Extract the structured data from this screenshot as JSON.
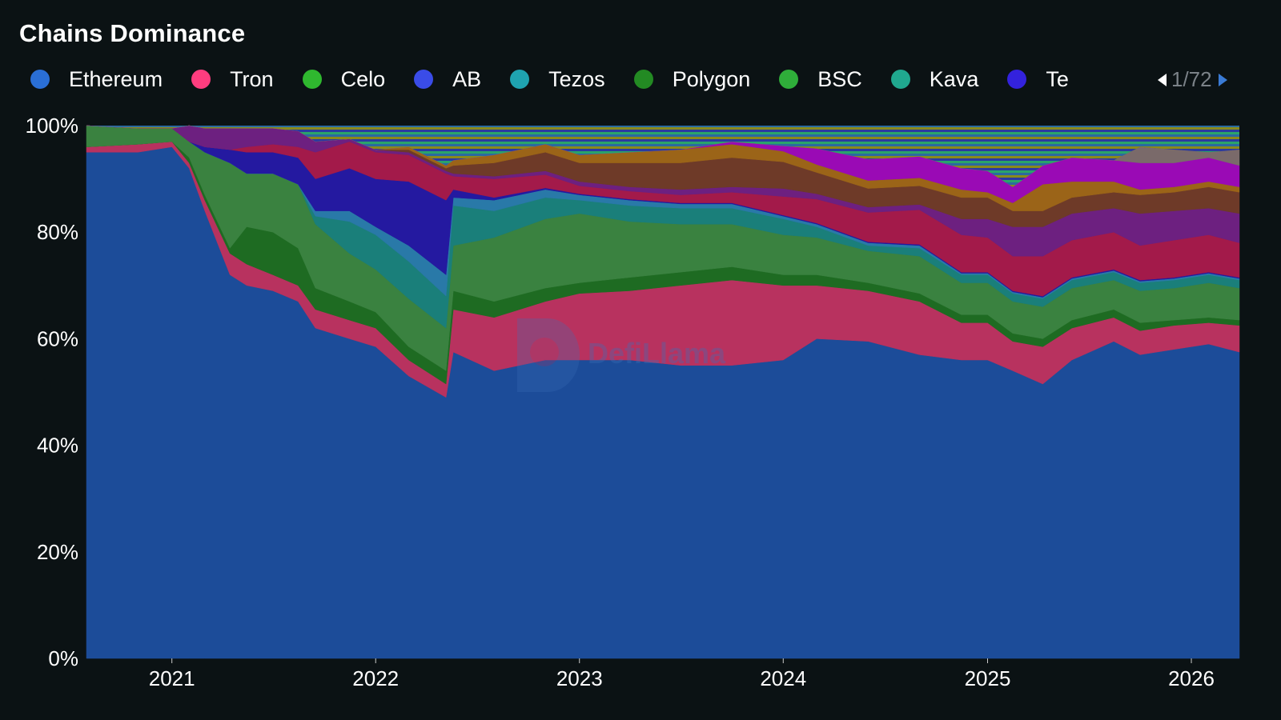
{
  "title": "Chains Dominance",
  "legend": {
    "items": [
      {
        "label": "Ethereum",
        "color": "#2a6fd6"
      },
      {
        "label": "Tron",
        "color": "#ff3d7f"
      },
      {
        "label": "Celo",
        "color": "#2fb82f"
      },
      {
        "label": "AB",
        "color": "#3a4ce8"
      },
      {
        "label": "Tezos",
        "color": "#1fa3b0"
      },
      {
        "label": "Polygon",
        "color": "#238a23"
      },
      {
        "label": "BSC",
        "color": "#2fae3a"
      },
      {
        "label": "Kava",
        "color": "#20a88f"
      },
      {
        "label": "Te",
        "color": "#3322dd"
      }
    ],
    "page": "1/72",
    "prev_icon": "triangle-left",
    "next_icon": "triangle-right"
  },
  "watermark": "DefiLlama",
  "chart_data": {
    "type": "area",
    "stacked": true,
    "normalized": true,
    "title": "Chains Dominance",
    "xlabel": "",
    "ylabel": "",
    "xlim": [
      "2020-08-01",
      "2026-03-28"
    ],
    "ylim": [
      0,
      100
    ],
    "y_ticks": [
      "0%",
      "20%",
      "40%",
      "60%",
      "80%",
      "100%"
    ],
    "x_ticks": [
      "2021",
      "2022",
      "2023",
      "2024",
      "2025",
      "2026"
    ],
    "grid": false,
    "legend_position": "top",
    "x": [
      "2020-08-01",
      "2020-11-01",
      "2021-01-01",
      "2021-02-01",
      "2021-03-01",
      "2021-04-15",
      "2021-05-15",
      "2021-07-01",
      "2021-08-15",
      "2021-09-15",
      "2021-11-15",
      "2022-01-01",
      "2022-03-01",
      "2022-05-07",
      "2022-05-20",
      "2022-08-01",
      "2022-11-01",
      "2023-01-01",
      "2023-04-01",
      "2023-07-01",
      "2023-10-01",
      "2024-01-01",
      "2024-03-01",
      "2024-06-01",
      "2024-09-01",
      "2024-11-15",
      "2025-01-01",
      "2025-02-15",
      "2025-04-10",
      "2025-06-01",
      "2025-08-15",
      "2025-10-01",
      "2025-12-01",
      "2026-02-01",
      "2026-03-28"
    ],
    "series": [
      {
        "name": "Ethereum",
        "color": "#1c4c99",
        "values": [
          95,
          95,
          96,
          92,
          84,
          72,
          70,
          69,
          67,
          62,
          60,
          58.5,
          53,
          49,
          57.5,
          54,
          56,
          56,
          56,
          55,
          55,
          56,
          60,
          59.5,
          57,
          56,
          56,
          54,
          51.5,
          56,
          59.5,
          57,
          58,
          59,
          57.5
        ]
      },
      {
        "name": "Tron",
        "color": "#b8325f",
        "values": [
          1,
          1.5,
          1,
          1,
          2,
          4,
          4,
          3,
          3,
          3.5,
          3.5,
          3.5,
          3,
          2.5,
          8,
          10,
          11,
          12.5,
          13,
          15,
          16,
          14,
          10,
          9.5,
          10,
          7,
          7,
          5.5,
          7,
          6,
          4.5,
          4.5,
          4.5,
          4,
          5
        ]
      },
      {
        "name": "Polygon",
        "color": "#1e6b22",
        "values": [
          0,
          0,
          0,
          1,
          1,
          1,
          7,
          8,
          7,
          4,
          3.5,
          3,
          2.5,
          2.5,
          3.5,
          3,
          2.5,
          2,
          2.5,
          2.5,
          2.5,
          2,
          2,
          1.5,
          1.5,
          1.5,
          1.5,
          1.5,
          1.5,
          1.5,
          1.5,
          1.5,
          1,
          1,
          1
        ]
      },
      {
        "name": "BSC",
        "color": "#3a8240",
        "values": [
          4,
          3,
          2.5,
          3,
          8,
          16,
          10,
          11,
          12,
          12,
          9,
          8,
          9,
          8,
          8.5,
          12,
          13,
          13,
          10.5,
          9,
          8,
          7.5,
          7,
          6,
          7,
          6,
          6,
          6,
          6,
          6,
          5.5,
          6,
          6,
          6.5,
          6
        ]
      },
      {
        "color": "#1a7f7a",
        "values": [
          0,
          0,
          0,
          0,
          0,
          0,
          0,
          0,
          0,
          1.5,
          6,
          6.5,
          7,
          6,
          7.5,
          5,
          4,
          2.5,
          3,
          3,
          3,
          3,
          2,
          1,
          1.5,
          1.5,
          1.5,
          1.5,
          1.5,
          1.5,
          1.5,
          1.5,
          1.5,
          1.5,
          1.5
        ]
      },
      {
        "color": "#2979a8",
        "values": [
          0,
          0,
          0,
          0,
          0,
          0,
          0,
          0,
          0,
          1,
          2,
          1.5,
          3,
          4,
          1.5,
          2,
          1.5,
          1,
          1,
          0.8,
          0.8,
          0.5,
          0.5,
          0.5,
          0.5,
          0.3,
          0.3,
          0.3,
          0.3,
          0.3,
          0.3,
          0.3,
          0.3,
          0.3,
          0.3
        ]
      },
      {
        "color": "#2419a0",
        "values": [
          0,
          0,
          0,
          0,
          1,
          2.5,
          4,
          4,
          5,
          6,
          8,
          9,
          12,
          14,
          1.5,
          0.5,
          0.3,
          0.2,
          0.2,
          0.2,
          0.2,
          0.2,
          0.2,
          0.2,
          0.2,
          0.2,
          0.2,
          0.2,
          0.2,
          0.2,
          0.2,
          0.2,
          0.2,
          0.2,
          0.2
        ]
      },
      {
        "color": "#a31a4a",
        "values": [
          0,
          0,
          0,
          0,
          0,
          0,
          1,
          1.5,
          2,
          5,
          5,
          5,
          5,
          5,
          2.5,
          3.5,
          2.5,
          1.5,
          1.5,
          1.5,
          2,
          3.5,
          4.5,
          5.5,
          6.5,
          7,
          6.5,
          6.5,
          7.5,
          7,
          7,
          6.5,
          7,
          7,
          6.5
        ]
      },
      {
        "color": "#6d2080",
        "values": [
          0,
          0,
          0,
          3,
          3.5,
          4,
          3.5,
          3,
          3,
          2,
          0.5,
          0.5,
          0.5,
          0.5,
          0.5,
          0.5,
          0.7,
          0.8,
          0.8,
          1,
          1,
          1.5,
          1,
          1,
          1,
          3,
          3.5,
          5.5,
          5.5,
          5,
          4.5,
          6,
          5.5,
          5,
          5.5
        ]
      },
      {
        "color": "#6e3a28",
        "values": [
          0,
          0,
          0,
          0,
          0,
          0,
          0,
          0,
          0,
          0,
          0,
          0,
          0.5,
          0.5,
          1.5,
          2.5,
          3.5,
          3.5,
          4.5,
          5,
          5.5,
          5,
          4,
          3.5,
          3.5,
          4,
          4,
          3,
          3,
          3,
          3,
          3.5,
          3.5,
          4,
          4
        ]
      },
      {
        "color": "#9b6418",
        "values": [
          0,
          0,
          0,
          0,
          0,
          0,
          0,
          0,
          0,
          0,
          0,
          0,
          0.5,
          0.5,
          1,
          1.5,
          1.5,
          1.5,
          2,
          2.5,
          2.5,
          2,
          1.5,
          1.5,
          1.5,
          1.5,
          1,
          1.5,
          5,
          3,
          2,
          1,
          1,
          1,
          1
        ]
      },
      {
        "color": "#9a0ab5",
        "values": [
          0,
          0,
          0,
          0,
          0,
          0,
          0,
          0,
          0,
          0,
          0,
          0,
          0,
          0,
          0,
          0,
          0,
          0,
          0,
          0,
          0.5,
          1,
          3,
          4,
          4,
          4,
          4,
          3,
          3.5,
          4.5,
          4,
          5,
          4.5,
          4.5,
          4
        ]
      },
      {
        "color": "#7a6a6a",
        "values": [
          0,
          0,
          0,
          0,
          0,
          0,
          0,
          0,
          0,
          0,
          0,
          0,
          0,
          0,
          0,
          0,
          0,
          0,
          0,
          0,
          0,
          0,
          0,
          0,
          0,
          0,
          0,
          0,
          0,
          0,
          0,
          3,
          2.5,
          1,
          3
        ]
      },
      {
        "color": "#2e5f8f",
        "values": [
          0,
          0.5,
          0.5,
          0,
          0.5,
          0.5,
          0.5,
          0.5,
          1,
          3,
          2.5,
          4.5,
          4,
          7.5,
          6.5,
          5.5,
          3.5,
          5.5,
          5,
          4.5,
          3,
          3.8,
          4.3,
          6.3,
          5.8,
          8,
          8.5,
          11.5,
          7.5,
          6,
          6.5,
          4,
          4.5,
          5,
          4.5
        ]
      }
    ]
  }
}
